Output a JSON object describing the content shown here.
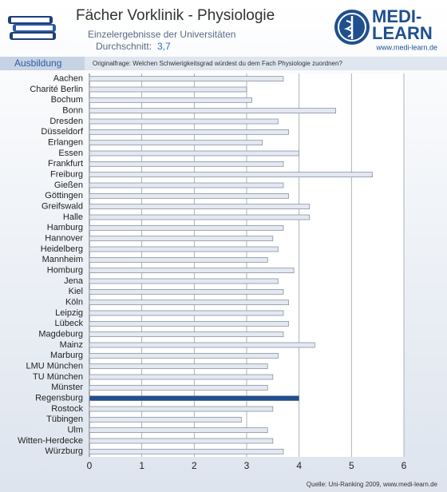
{
  "header": {
    "title": "Fächer Vorklinik - Physiologie",
    "subtitle": "Einzelergebnisse der Universitäten",
    "average_label": "Durchschnitt:",
    "average": "3,7",
    "section": "Ausbildung",
    "question": "Originalfrage: Welchen Schwierigkeitsgrad würdest du dem Fach Physiologie zuordnen?",
    "logo_line1": "MEDI-",
    "logo_line2": "LEARN",
    "logo_url": "www.medi-learn.de",
    "source": "Quelle: Uni-Ranking 2009, www.medi-learn.de"
  },
  "chart_data": {
    "type": "hbar",
    "categories": [
      "Aachen",
      "Charité Berlin",
      "Bochum",
      "Bonn",
      "Dresden",
      "Düsseldorf",
      "Erlangen",
      "Essen",
      "Frankfurt",
      "Freiburg",
      "Gießen",
      "Göttingen",
      "Greifswald",
      "Halle",
      "Hamburg",
      "Hannover",
      "Heidelberg",
      "Mannheim",
      "Homburg",
      "Jena",
      "Kiel",
      "Köln",
      "Leipzig",
      "Lübeck",
      "Magdeburg",
      "Mainz",
      "Marburg",
      "LMU München",
      "TU München",
      "Münster",
      "Regensburg",
      "Rostock",
      "Tübingen",
      "Ulm",
      "Witten-Herdecke",
      "Würzburg"
    ],
    "values": [
      3.7,
      3.0,
      3.1,
      4.7,
      3.6,
      3.8,
      3.3,
      4.0,
      3.7,
      5.4,
      3.7,
      3.8,
      4.2,
      4.2,
      3.7,
      3.5,
      3.6,
      3.4,
      3.9,
      3.6,
      3.7,
      3.8,
      3.7,
      3.8,
      3.7,
      4.3,
      3.6,
      3.4,
      3.5,
      3.4,
      4.0,
      3.5,
      2.9,
      3.4,
      3.5,
      3.7
    ],
    "colors": [
      "#e3e8f1",
      "#e3e8f1",
      "#e3e8f1",
      "#e3e8f1",
      "#e3e8f1",
      "#e3e8f1",
      "#e3e8f1",
      "#e3e8f1",
      "#e3e8f1",
      "#e3e8f1",
      "#e3e8f1",
      "#e3e8f1",
      "#e3e8f1",
      "#e3e8f1",
      "#e3e8f1",
      "#e3e8f1",
      "#e3e8f1",
      "#e3e8f1",
      "#e3e8f1",
      "#e3e8f1",
      "#e3e8f1",
      "#e3e8f1",
      "#e3e8f1",
      "#e3e8f1",
      "#e3e8f1",
      "#e3e8f1",
      "#e3e8f1",
      "#e3e8f1",
      "#e3e8f1",
      "#e3e8f1",
      "#1f4f8f",
      "#e3e8f1",
      "#e3e8f1",
      "#e3e8f1",
      "#e3e8f1",
      "#e3e8f1"
    ],
    "xlim": [
      0,
      6
    ],
    "xticks": [
      0,
      1,
      2,
      3,
      4,
      5,
      6
    ],
    "grid": true
  }
}
